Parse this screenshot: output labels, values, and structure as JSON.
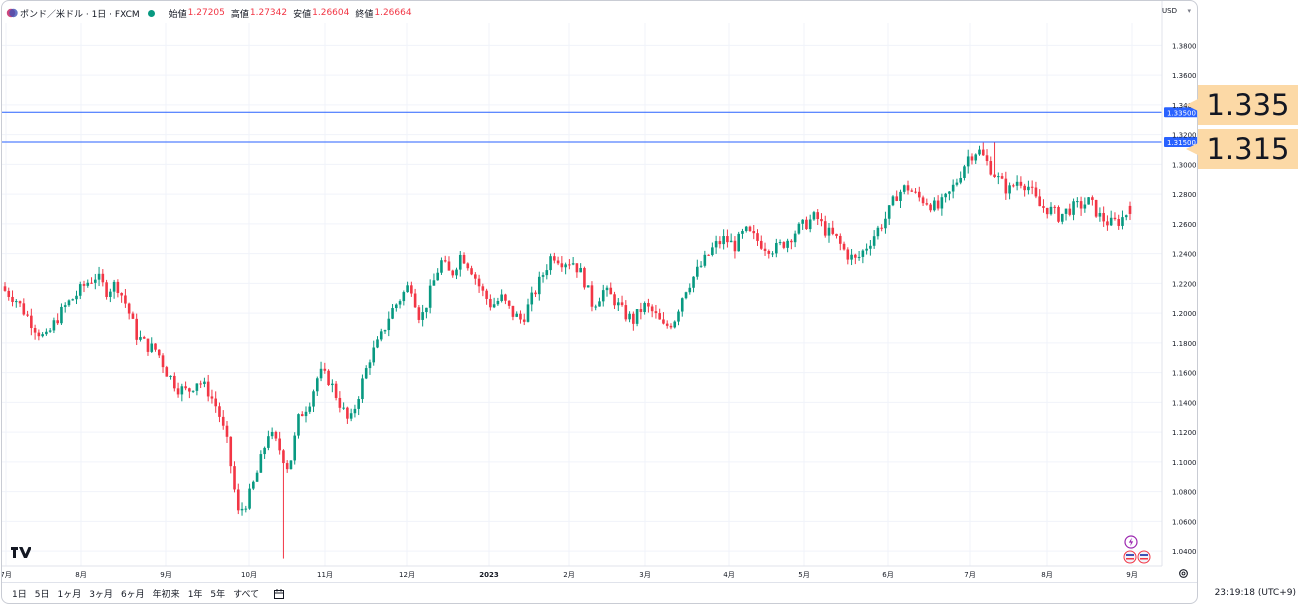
{
  "header": {
    "symbol": "ポンド／米ドル · 1日 · FXCM",
    "open_label": "始値",
    "open_value": "1.27205",
    "high_label": "高値",
    "high_value": "1.27342",
    "low_label": "安値",
    "low_value": "1.26604",
    "close_label": "終値",
    "close_value": "1.26664",
    "currency": "USD",
    "market_status_color": "#089981"
  },
  "colors": {
    "up": "#089981",
    "down": "#f23645",
    "hline": "#2962ff",
    "grid": "#f0f3fa",
    "tag_bg": "#fcd9a6"
  },
  "chart_data": {
    "type": "candlestick",
    "ylim": [
      1.03,
      1.395
    ],
    "y_ticks": [
      "1.38000",
      "1.36000",
      "1.34000",
      "1.32000",
      "1.30000",
      "1.28000",
      "1.26000",
      "1.24000",
      "1.22000",
      "1.20000",
      "1.18000",
      "1.16000",
      "1.14000",
      "1.12000",
      "1.10000",
      "1.08000",
      "1.06000",
      "1.04000"
    ],
    "x_ticks": [
      "7月",
      "8月",
      "9月",
      "10月",
      "11月",
      "12月",
      "2023",
      "2月",
      "3月",
      "4月",
      "5月",
      "6月",
      "7月",
      "8月",
      "9月"
    ],
    "horizontal_lines": [
      {
        "price": 1.335,
        "axis_label": "1.33500"
      },
      {
        "price": 1.315,
        "axis_label": "1.31500"
      }
    ],
    "close_path": [
      1.215,
      1.21,
      1.2,
      1.19,
      1.182,
      1.195,
      1.205,
      1.212,
      1.22,
      1.225,
      1.215,
      1.22,
      1.205,
      1.185,
      1.178,
      1.175,
      1.16,
      1.15,
      1.147,
      1.155,
      1.148,
      1.135,
      1.11,
      1.065,
      1.075,
      1.095,
      1.12,
      1.11,
      1.095,
      1.13,
      1.14,
      1.16,
      1.155,
      1.14,
      1.125,
      1.148,
      1.17,
      1.182,
      1.2,
      1.21,
      1.22,
      1.195,
      1.215,
      1.235,
      1.225,
      1.24,
      1.23,
      1.215,
      1.205,
      1.21,
      1.2,
      1.195,
      1.21,
      1.225,
      1.24,
      1.235,
      1.235,
      1.225,
      1.205,
      1.215,
      1.21,
      1.2,
      1.195,
      1.205,
      1.2,
      1.19,
      1.195,
      1.215,
      1.225,
      1.235,
      1.245,
      1.25,
      1.245,
      1.255,
      1.25,
      1.245,
      1.243,
      1.248,
      1.255,
      1.26,
      1.265,
      1.255,
      1.25,
      1.24,
      1.235,
      1.245,
      1.255,
      1.265,
      1.28,
      1.285,
      1.278,
      1.275,
      1.27,
      1.278,
      1.29,
      1.305,
      1.31,
      1.3,
      1.29,
      1.282,
      1.29,
      1.285,
      1.272,
      1.27,
      1.265,
      1.27,
      1.272,
      1.275,
      1.265,
      1.26,
      1.262,
      1.27
    ],
    "first_open": 1.218,
    "last_bar": {
      "open": 1.27205,
      "high": 1.27342,
      "low": 1.26604,
      "close": 1.26664
    }
  },
  "bottom_bar": {
    "ranges": [
      "1日",
      "5日",
      "1ヶ月",
      "3ヶ月",
      "6ヶ月",
      "年初来",
      "1年",
      "5年",
      "すべて"
    ],
    "clock": "23:19:18 (UTC+9)"
  },
  "tags": {
    "upper": "1.335",
    "lower": "1.315"
  },
  "logo": "17"
}
